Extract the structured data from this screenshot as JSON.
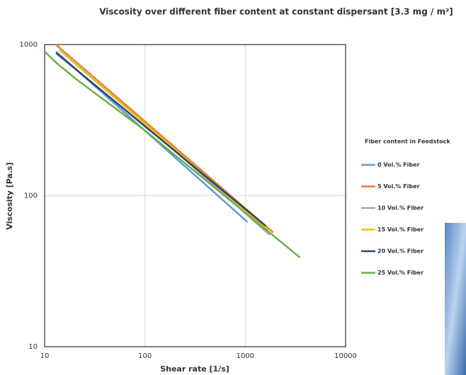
{
  "chart_data": {
    "type": "line",
    "title": "Viscosity  over different fiber content at constant dispersant  [3.3 mg / m²]",
    "x_label": "Shear rate [1/s]",
    "y_label": "Viscosity [Pa.s]",
    "legend_title": "Fiber content in Feedstock",
    "log_x": true,
    "log_y": true,
    "grid": true,
    "legend": "right",
    "xlim": [
      10,
      10000
    ],
    "xticks": [
      10,
      100,
      1000,
      10000
    ],
    "ylim": [
      10,
      1000
    ],
    "yticks": [
      10,
      100,
      1000
    ],
    "series": [
      {
        "name": "0 Vol.% Fiber",
        "color": "#5b9bd5",
        "x": [
          13,
          1050
        ],
        "values": [
          900,
          67
        ]
      },
      {
        "name": "5 Vol.% Fiber",
        "color": "#ed7d31",
        "x": [
          13,
          1900
        ],
        "values": [
          1000,
          57
        ]
      },
      {
        "name": "10 Vol.% Fiber",
        "color": "#a5a5a5",
        "x": [
          14,
          1750
        ],
        "values": [
          950,
          55
        ]
      },
      {
        "name": "15 Vol.% Fiber",
        "color": "#ffc000",
        "x": [
          14,
          1700
        ],
        "values": [
          920,
          59
        ]
      },
      {
        "name": "20 Vol.% Fiber",
        "color": "#264478",
        "x": [
          13,
          1600
        ],
        "values": [
          880,
          63
        ]
      },
      {
        "name": "25 Vol.% Fiber",
        "color": "#70ad47",
        "x": [
          10,
          13,
          20,
          100,
          3500
        ],
        "values": [
          900,
          760,
          600,
          270,
          39
        ]
      }
    ]
  }
}
